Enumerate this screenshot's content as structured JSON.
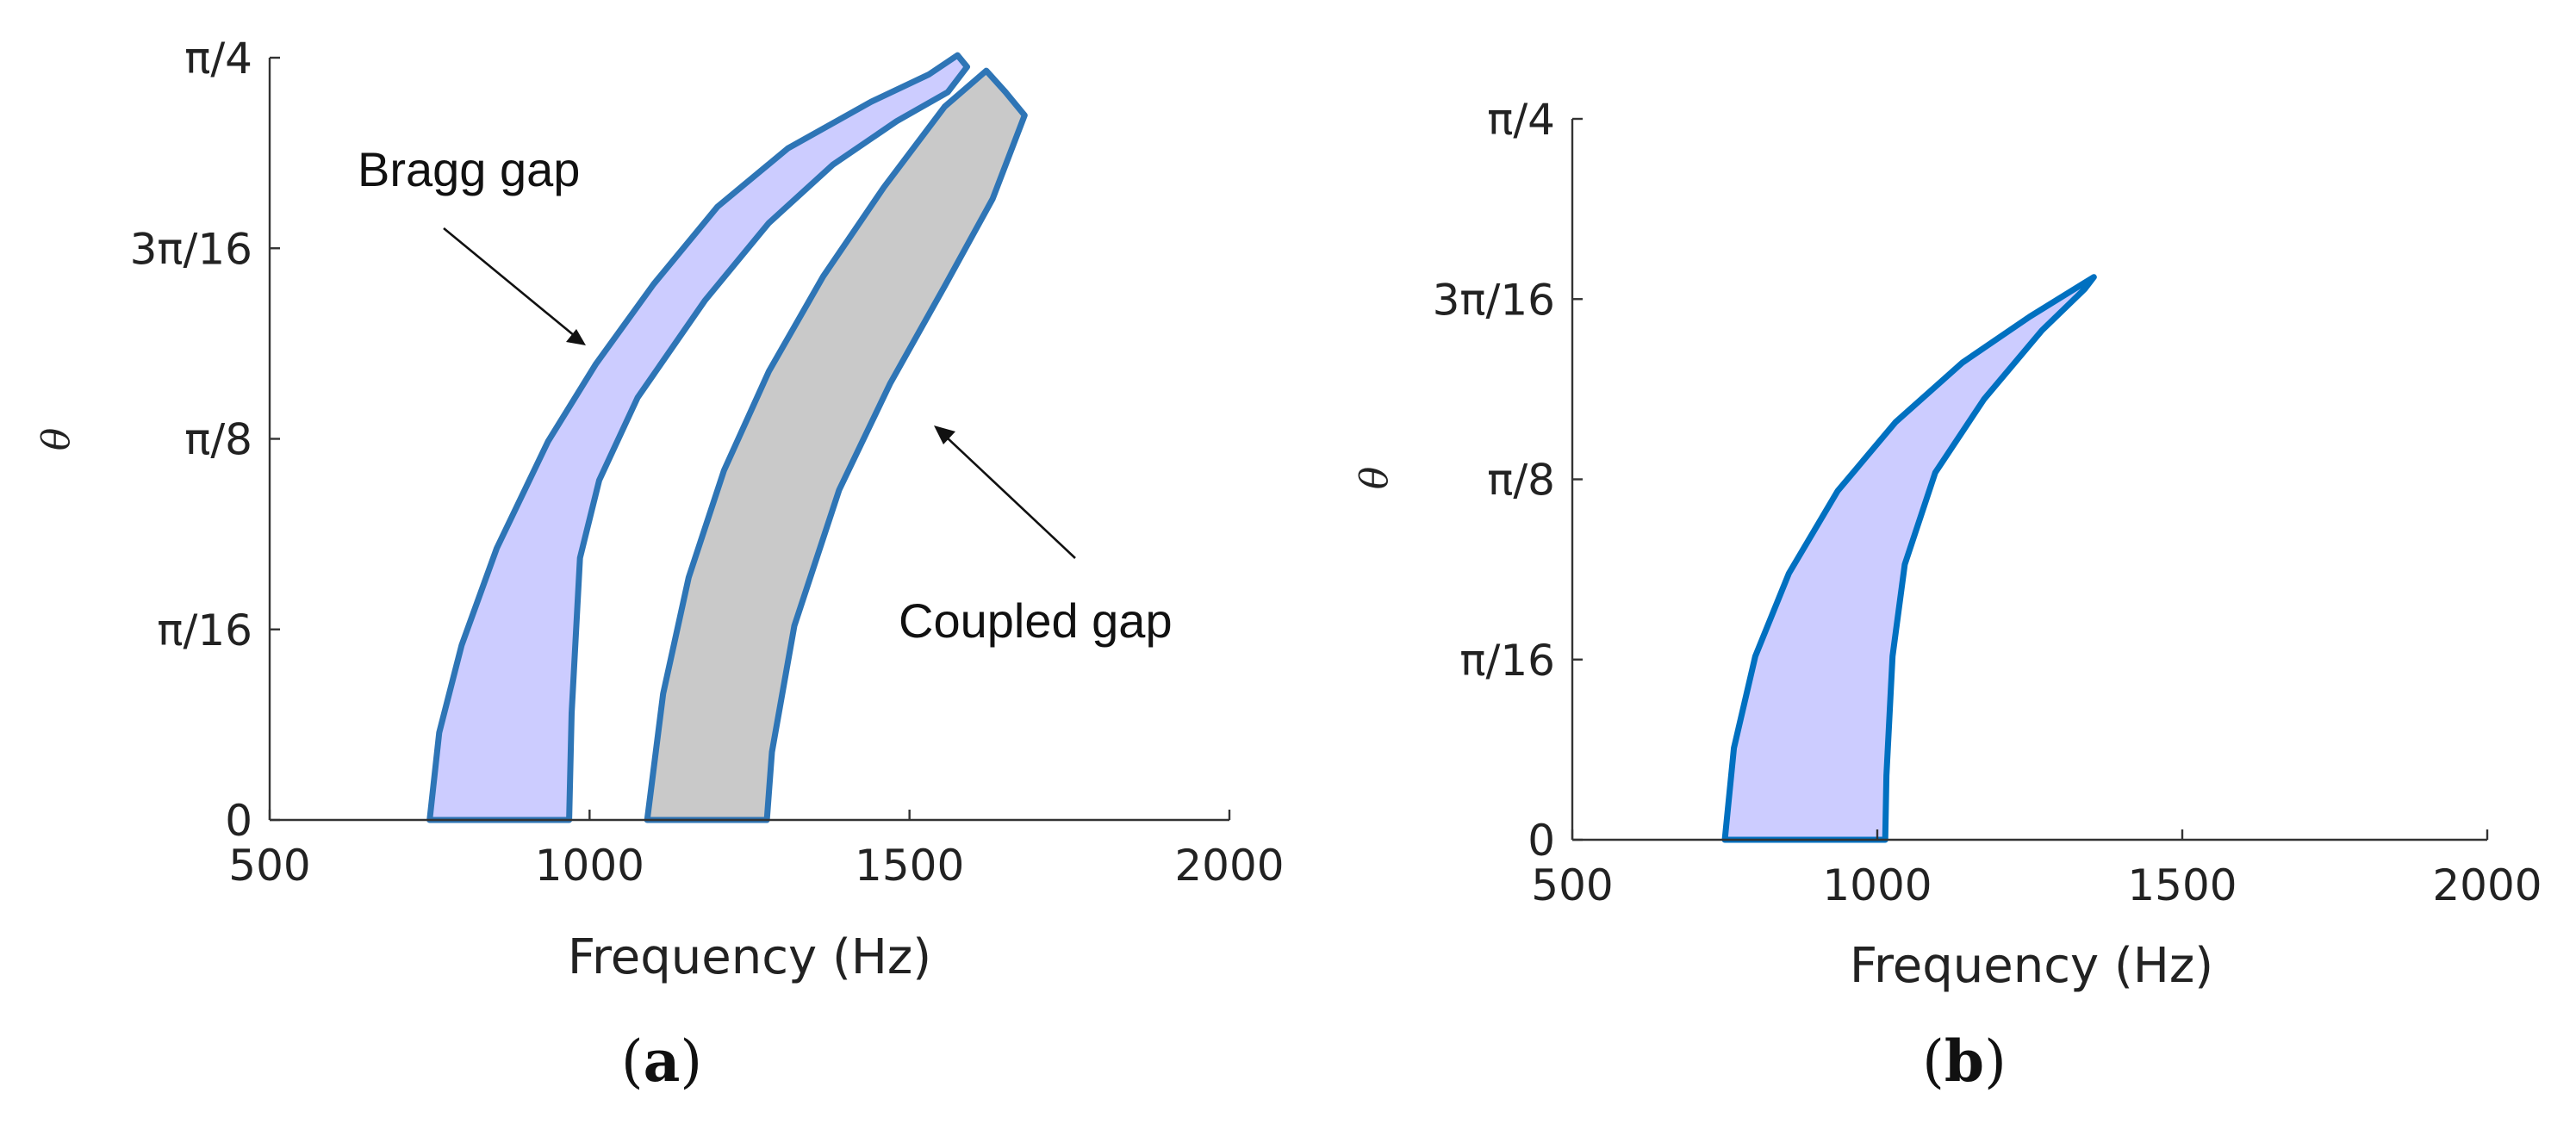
{
  "chart_data": [
    {
      "type": "area",
      "panel_label": "(a)",
      "panel_label_parts": {
        "open": "(",
        "letter": "a",
        "close": ")"
      },
      "xlabel": "Frequency (Hz)",
      "ylabel": "θ",
      "xlim": [
        500,
        2000
      ],
      "ylim": [
        0,
        0.7854
      ],
      "x_ticks": [
        500,
        1000,
        1500,
        2000
      ],
      "x_tick_labels": [
        "500",
        "1000",
        "1500",
        "2000"
      ],
      "y_ticks": [
        0,
        0.19635,
        0.3927,
        0.58905,
        0.7854
      ],
      "y_tick_labels": [
        "0",
        "π/16",
        "π/8",
        "3π/16",
        "π/4"
      ],
      "grid": false,
      "series": [
        {
          "name": "Bragg gap",
          "fill": "#ccccff",
          "stroke": "#2e75b6",
          "points": [
            [
              750,
              0
            ],
            [
              765,
              0.09
            ],
            [
              800,
              0.18
            ],
            [
              855,
              0.28
            ],
            [
              935,
              0.39
            ],
            [
              1010,
              0.47
            ],
            [
              1100,
              0.552
            ],
            [
              1200,
              0.632
            ],
            [
              1310,
              0.692
            ],
            [
              1440,
              0.74
            ],
            [
              1530,
              0.768
            ],
            [
              1575,
              0.788
            ],
            [
              1590,
              0.776
            ],
            [
              1560,
              0.75
            ],
            [
              1480,
              0.72
            ],
            [
              1380,
              0.675
            ],
            [
              1280,
              0.615
            ],
            [
              1180,
              0.535
            ],
            [
              1075,
              0.435
            ],
            [
              1015,
              0.35
            ],
            [
              985,
              0.27
            ],
            [
              972,
              0.11
            ],
            [
              968,
              0
            ]
          ]
        },
        {
          "name": "Coupled gap",
          "fill": "#c9c9c9",
          "stroke": "#2e75b6",
          "points": [
            [
              1090,
              0
            ],
            [
              1115,
              0.13
            ],
            [
              1155,
              0.25
            ],
            [
              1210,
              0.36
            ],
            [
              1280,
              0.462
            ],
            [
              1365,
              0.56
            ],
            [
              1460,
              0.652
            ],
            [
              1555,
              0.735
            ],
            [
              1620,
              0.772
            ],
            [
              1650,
              0.75
            ],
            [
              1680,
              0.726
            ],
            [
              1630,
              0.64
            ],
            [
              1555,
              0.55
            ],
            [
              1470,
              0.45
            ],
            [
              1390,
              0.34
            ],
            [
              1320,
              0.2
            ],
            [
              1285,
              0.07
            ],
            [
              1277,
              0
            ]
          ]
        }
      ],
      "annotations": [
        {
          "text": "Bragg gap",
          "points_to": [
            1010,
            0.49
          ]
        },
        {
          "text": "Coupled gap",
          "points_to": [
            1520,
            0.405
          ]
        }
      ]
    },
    {
      "type": "area",
      "panel_label": "(b)",
      "panel_label_parts": {
        "open": "(",
        "letter": "b",
        "close": ")"
      },
      "xlabel": "Frequency (Hz)",
      "ylabel": "θ",
      "xlim": [
        500,
        2000
      ],
      "ylim": [
        0,
        0.7854
      ],
      "x_ticks": [
        500,
        1000,
        1500,
        2000
      ],
      "x_tick_labels": [
        "500",
        "1000",
        "1500",
        "2000"
      ],
      "y_ticks": [
        0,
        0.19635,
        0.3927,
        0.58905,
        0.7854
      ],
      "y_tick_labels": [
        "0",
        "π/16",
        "π/8",
        "3π/16",
        "π/4"
      ],
      "grid": false,
      "series": [
        {
          "fill": "#ccccff",
          "stroke": "#0070c0",
          "points": [
            [
              750,
              0
            ],
            [
              765,
              0.1
            ],
            [
              800,
              0.2
            ],
            [
              855,
              0.29
            ],
            [
              935,
              0.38
            ],
            [
              1030,
              0.455
            ],
            [
              1140,
              0.52
            ],
            [
              1250,
              0.57
            ],
            [
              1355,
              0.613
            ],
            [
              1340,
              0.6
            ],
            [
              1270,
              0.555
            ],
            [
              1175,
              0.48
            ],
            [
              1095,
              0.4
            ],
            [
              1045,
              0.3
            ],
            [
              1025,
              0.2
            ],
            [
              1015,
              0.07
            ],
            [
              1013,
              0
            ]
          ]
        }
      ]
    }
  ]
}
